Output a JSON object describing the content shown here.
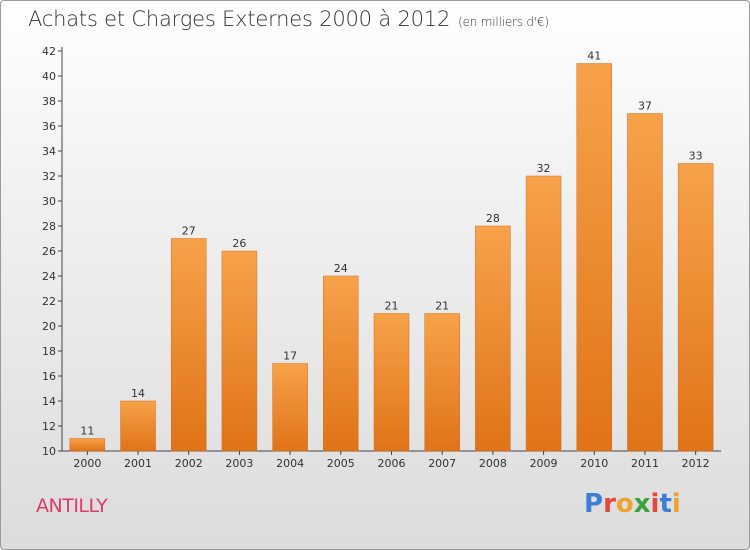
{
  "header": {
    "title": "Achats et Charges Externes 2000 à 2012",
    "subtitle": "(en milliers d'€)"
  },
  "footer": {
    "city": "ANTILLY",
    "logo_text": "Proxiti",
    "logo_colors": [
      "#3a7fd5",
      "#e8443a",
      "#f0a22e",
      "#3aa23a",
      "#e8443a",
      "#3a7fd5",
      "#f0a22e"
    ]
  },
  "chart_data": {
    "type": "bar",
    "title": "Achats et Charges Externes 2000 à 2012",
    "subtitle": "(en milliers d'€)",
    "categories": [
      "2000",
      "2001",
      "2002",
      "2003",
      "2004",
      "2005",
      "2006",
      "2007",
      "2008",
      "2009",
      "2010",
      "2011",
      "2012"
    ],
    "values": [
      11,
      14,
      27,
      26,
      17,
      24,
      21,
      21,
      28,
      32,
      41,
      37,
      33
    ],
    "ylim": [
      10,
      42
    ],
    "yticks": [
      10,
      12,
      14,
      16,
      18,
      20,
      22,
      24,
      26,
      28,
      30,
      32,
      34,
      36,
      38,
      40,
      42
    ],
    "grid": false,
    "bar_color": "#f08a2a",
    "data_labels": true
  }
}
